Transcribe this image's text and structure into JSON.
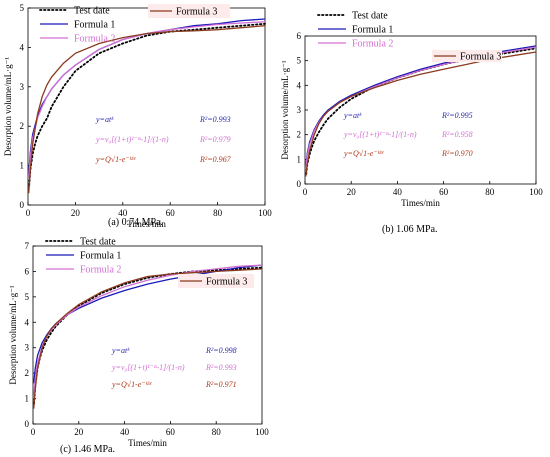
{
  "chart_data": [
    {
      "type": "line",
      "caption": "(a) 0.74 MPa.",
      "xlabel": "Times/min",
      "ylabel": "Desorption volume/mL·g⁻¹",
      "xlim": [
        0,
        100
      ],
      "ylim": [
        0,
        5
      ],
      "xticks": [
        0,
        20,
        40,
        60,
        80,
        100
      ],
      "yticks": [
        0,
        1,
        2,
        3,
        4,
        5
      ],
      "legend": [
        "Test date",
        "Formula 1",
        "Formula 2",
        "Formula 3"
      ],
      "series": [
        {
          "name": "Test date",
          "style": "dotted",
          "color": "#000000",
          "x": [
            0.5,
            1,
            2,
            3,
            4,
            6,
            8,
            10,
            15,
            20,
            30,
            40,
            50,
            60,
            70,
            80,
            90,
            100
          ],
          "y": [
            0.5,
            0.9,
            1.3,
            1.55,
            1.75,
            2.0,
            2.2,
            2.5,
            3.0,
            3.4,
            3.85,
            4.1,
            4.3,
            4.4,
            4.45,
            4.5,
            4.55,
            4.6
          ]
        },
        {
          "name": "Formula 1",
          "style": "solid",
          "color": "#1a1ab8",
          "x": [
            0.3,
            1,
            2,
            4,
            6,
            8,
            10,
            15,
            20,
            30,
            40,
            50,
            60,
            70,
            80,
            90,
            100
          ],
          "y": [
            0.8,
            1.35,
            1.8,
            2.25,
            2.55,
            2.75,
            2.95,
            3.3,
            3.55,
            3.95,
            4.2,
            4.35,
            4.45,
            4.55,
            4.6,
            4.68,
            4.72
          ]
        },
        {
          "name": "Formula 2",
          "style": "solid",
          "color": "#d270d2",
          "x": [
            0.3,
            1,
            2,
            4,
            6,
            8,
            10,
            15,
            20,
            30,
            40,
            50,
            60,
            70,
            80,
            90,
            100
          ],
          "y": [
            0.7,
            1.25,
            1.7,
            2.2,
            2.5,
            2.75,
            2.95,
            3.3,
            3.55,
            3.95,
            4.2,
            4.35,
            4.45,
            4.52,
            4.58,
            4.62,
            4.65
          ]
        },
        {
          "name": "Formula 3",
          "style": "solid",
          "color": "#8b3a1e",
          "x": [
            0.3,
            1,
            2,
            4,
            6,
            8,
            10,
            15,
            20,
            30,
            40,
            50,
            60,
            70,
            80,
            90,
            100
          ],
          "y": [
            0.3,
            0.9,
            1.55,
            2.3,
            2.75,
            3.05,
            3.25,
            3.6,
            3.85,
            4.1,
            4.25,
            4.35,
            4.4,
            4.42,
            4.45,
            4.5,
            4.55
          ]
        }
      ],
      "equations": [
        {
          "formula": "y=atᵏ",
          "r2": "R²=0.993",
          "color": "#2a2ab0"
        },
        {
          "formula": "y=v₀[(1+t)¹⁻ⁿ-1]/(1-n)",
          "r2": "R²=0.979",
          "color": "#d270d2"
        },
        {
          "formula": "y=Q√1-e⁻ᵏᵇᵗ",
          "r2": "R²=0.967",
          "color": "#b03a1e"
        }
      ]
    },
    {
      "type": "line",
      "caption": "(b) 1.06 MPa.",
      "xlabel": "Times/min",
      "ylabel": "Desorption volume/mL·g⁻¹",
      "xlim": [
        0,
        100
      ],
      "ylim": [
        0,
        6
      ],
      "xticks": [
        0,
        20,
        40,
        60,
        80,
        100
      ],
      "yticks": [
        0,
        1,
        2,
        3,
        4,
        5,
        6
      ],
      "legend": [
        "Test date",
        "Formula 1",
        "Formula 2",
        "Formula 3"
      ],
      "series": [
        {
          "name": "Test date",
          "style": "dotted",
          "color": "#000000",
          "x": [
            0.5,
            1,
            2,
            3,
            4,
            6,
            8,
            10,
            15,
            20,
            30,
            40,
            50,
            60,
            70,
            80,
            90,
            100
          ],
          "y": [
            0.4,
            0.8,
            1.2,
            1.5,
            1.75,
            2.1,
            2.4,
            2.65,
            3.1,
            3.45,
            3.95,
            4.3,
            4.6,
            4.85,
            5.05,
            5.2,
            5.35,
            5.5
          ]
        },
        {
          "name": "Formula 1",
          "style": "solid",
          "color": "#1a1ab8",
          "x": [
            0.3,
            1,
            2,
            4,
            6,
            8,
            10,
            15,
            20,
            30,
            40,
            50,
            60,
            70,
            80,
            90,
            100
          ],
          "y": [
            0.7,
            1.25,
            1.7,
            2.2,
            2.55,
            2.8,
            3.0,
            3.35,
            3.6,
            4.0,
            4.35,
            4.65,
            4.9,
            5.1,
            5.3,
            5.45,
            5.6
          ]
        },
        {
          "name": "Formula 2",
          "style": "solid",
          "color": "#d270d2",
          "x": [
            0.3,
            1,
            2,
            4,
            6,
            8,
            10,
            15,
            20,
            30,
            40,
            50,
            60,
            70,
            80,
            90,
            100
          ],
          "y": [
            0.6,
            1.15,
            1.6,
            2.15,
            2.5,
            2.75,
            2.95,
            3.3,
            3.55,
            3.95,
            4.3,
            4.6,
            4.85,
            5.05,
            5.25,
            5.4,
            5.55
          ]
        },
        {
          "name": "Formula 3",
          "style": "solid",
          "color": "#8b3a1e",
          "x": [
            0.3,
            1,
            2,
            4,
            6,
            8,
            10,
            15,
            20,
            30,
            40,
            50,
            60,
            70,
            80,
            90,
            100
          ],
          "y": [
            0.3,
            0.8,
            1.35,
            2.0,
            2.45,
            2.75,
            2.95,
            3.3,
            3.55,
            3.9,
            4.2,
            4.45,
            4.65,
            4.85,
            5.05,
            5.2,
            5.35
          ]
        }
      ],
      "equations": [
        {
          "formula": "y=atᵏ",
          "r2": "R²=0.995",
          "color": "#2a2ab0"
        },
        {
          "formula": "y=v₀[(1+t)¹⁻ⁿ-1]/(1-n)",
          "r2": "R²=0.958",
          "color": "#d270d2"
        },
        {
          "formula": "y=Q√1-e⁻ᵏᵇᵗ",
          "r2": "R²=0.970",
          "color": "#b03a1e"
        }
      ]
    },
    {
      "type": "line",
      "caption": "(c) 1.46 MPa.",
      "xlabel": "Times/min",
      "ylabel": "Desorption volume/mL·g⁻¹",
      "xlim": [
        0,
        100
      ],
      "ylim": [
        0,
        7
      ],
      "xticks": [
        0,
        20,
        40,
        60,
        80,
        100
      ],
      "yticks": [
        0,
        1,
        2,
        3,
        4,
        5,
        6,
        7
      ],
      "legend": [
        "Test date",
        "Formula 1",
        "Formula 2",
        "Formula 3"
      ],
      "series": [
        {
          "name": "Test date",
          "style": "dotted",
          "color": "#000000",
          "x": [
            0.5,
            1,
            2,
            3,
            4,
            6,
            8,
            10,
            15,
            20,
            30,
            40,
            50,
            60,
            70,
            80,
            90,
            100
          ],
          "y": [
            0.8,
            1.5,
            2.2,
            2.6,
            2.9,
            3.3,
            3.6,
            3.85,
            4.3,
            4.65,
            5.15,
            5.5,
            5.75,
            5.9,
            6.0,
            6.05,
            6.1,
            6.15
          ]
        },
        {
          "name": "Formula 1",
          "style": "solid",
          "color": "#1a1ab8",
          "x": [
            0.3,
            1,
            2,
            4,
            6,
            8,
            10,
            15,
            20,
            30,
            40,
            50,
            60,
            70,
            80,
            90,
            100
          ],
          "y": [
            1.6,
            2.2,
            2.7,
            3.2,
            3.5,
            3.75,
            3.95,
            4.3,
            4.55,
            4.95,
            5.25,
            5.5,
            5.7,
            5.85,
            6.0,
            6.15,
            6.25
          ]
        },
        {
          "name": "Formula 2",
          "style": "solid",
          "color": "#d270d2",
          "x": [
            0.3,
            1,
            2,
            4,
            6,
            8,
            10,
            15,
            20,
            30,
            40,
            50,
            60,
            70,
            80,
            90,
            100
          ],
          "y": [
            1.0,
            1.8,
            2.4,
            3.05,
            3.45,
            3.7,
            3.9,
            4.3,
            4.6,
            5.05,
            5.4,
            5.65,
            5.85,
            6.0,
            6.1,
            6.2,
            6.25
          ]
        },
        {
          "name": "Formula 3",
          "style": "solid",
          "color": "#8b3a1e",
          "x": [
            0.3,
            1,
            2,
            4,
            6,
            8,
            10,
            15,
            20,
            30,
            40,
            50,
            60,
            70,
            80,
            90,
            100
          ],
          "y": [
            0.6,
            1.4,
            2.2,
            3.0,
            3.45,
            3.75,
            3.95,
            4.35,
            4.7,
            5.2,
            5.55,
            5.8,
            5.9,
            5.95,
            6.0,
            6.05,
            6.1
          ]
        }
      ],
      "equations": [
        {
          "formula": "y=atᵏ",
          "r2": "R²=0.998",
          "color": "#2a2ab0"
        },
        {
          "formula": "y=v₀[(1+t)¹⁻ⁿ-1]/(1-n)",
          "r2": "R²=0.993",
          "color": "#d270d2"
        },
        {
          "formula": "y=Q√1-e⁻ᵏᵇᵗ",
          "r2": "R²=0.971",
          "color": "#b03a1e"
        }
      ]
    }
  ]
}
